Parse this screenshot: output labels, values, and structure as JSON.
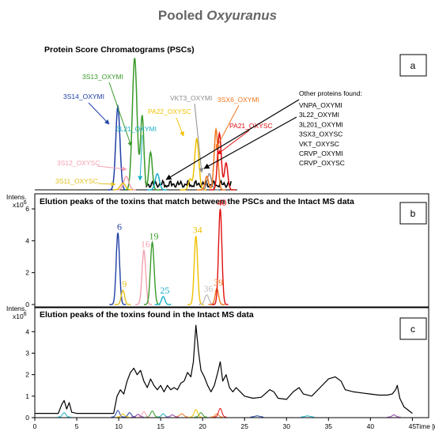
{
  "title_main": "Pooled ",
  "title_italic": "Oxyuranus",
  "colors": {
    "3S14_OXYMI": "#1f3fa6",
    "3S13_OXYMI": "#3a9a2a",
    "3L21_OXYMI": "#19b0c8",
    "PA22_OXYSC": "#f0c000",
    "VKT3_OXYMI": "#8c8c8c",
    "3SX6_OXYMI": "#f07820",
    "PA21_OXYSC": "#e01010",
    "3S12_OXYSC": "#f4a0b0",
    "3S11_OXYSC": "#e0c020",
    "other": "#000000"
  },
  "chart_data": [
    {
      "type": "line",
      "panel": "a",
      "title": "Protein Score Chromatograms (PSCs)",
      "labels": [
        {
          "text": "3S13_OXYMI",
          "color": "#3a9a2a"
        },
        {
          "text": "3S14_OXYMI",
          "color": "#1f3fa6"
        },
        {
          "text": "3L21_OXYMI",
          "color": "#19b0c8"
        },
        {
          "text": "PA22_OXYSC",
          "color": "#f0c000"
        },
        {
          "text": "VKT3_OXYMI",
          "color": "#8c8c8c"
        },
        {
          "text": "3SX6_OXYMI",
          "color": "#f07820"
        },
        {
          "text": "PA21_OXYSC",
          "color": "#e01010"
        },
        {
          "text": "3S12_OXYSC",
          "color": "#f4a0b0"
        },
        {
          "text": "3S11_OXYSC",
          "color": "#e0c020"
        }
      ],
      "other_title": "Other proteins found:",
      "other_proteins": [
        "VNPA_OXYMI",
        "3L22_OXYMI",
        "3L201_OXYMI",
        "3SX3_OXYSC",
        "VKT_OXYSC",
        "CRVP_OXYMI",
        "CRVP_OXYSC"
      ],
      "series": [
        {
          "name": "3S14_OXYMI",
          "color": "#1f3fa6",
          "peaks": [
            [
              9.9,
              0.62,
              0.25
            ]
          ]
        },
        {
          "name": "3S13_OXYMI",
          "color": "#3a9a2a",
          "peaks": [
            [
              11.9,
              0.98,
              0.28
            ],
            [
              12.8,
              0.55,
              0.2
            ],
            [
              13.8,
              0.28,
              0.2
            ]
          ]
        },
        {
          "name": "3L21_OXYMI",
          "color": "#19b0c8",
          "peaks": [
            [
              14.6,
              0.12,
              0.25
            ]
          ]
        },
        {
          "name": "PA22_OXYSC",
          "color": "#f0c000",
          "peaks": [
            [
              19.3,
              0.38,
              0.25
            ],
            [
              18.5,
              0.08,
              0.2
            ]
          ]
        },
        {
          "name": "VKT3_OXYMI",
          "color": "#8c8c8c",
          "peaks": [
            [
              20.8,
              0.12,
              0.25
            ]
          ]
        },
        {
          "name": "3SX6_OXYMI",
          "color": "#f07820",
          "peaks": [
            [
              21.6,
              0.45,
              0.22
            ],
            [
              20.5,
              0.1,
              0.2
            ]
          ]
        },
        {
          "name": "PA21_OXYSC",
          "color": "#e01010",
          "peaks": [
            [
              22.0,
              0.42,
              0.22
            ],
            [
              22.8,
              0.2,
              0.2
            ]
          ]
        },
        {
          "name": "3S12_OXYSC",
          "color": "#f4a0b0",
          "peaks": [
            [
              10.9,
              0.1,
              0.3
            ]
          ]
        },
        {
          "name": "3S11_OXYSC",
          "color": "#e0c020",
          "peaks": [
            [
              10.5,
              0.05,
              0.3
            ]
          ]
        }
      ]
    },
    {
      "type": "line",
      "panel": "b",
      "title": "Elution peaks of the toxins that match between the PSCs and the Intact MS data",
      "ylabel": "Intens.",
      "yexp": "x10",
      "yexp_power": "6",
      "ylim": [
        0,
        6.3
      ],
      "yticks": [
        0,
        2,
        4,
        6
      ],
      "series": [
        {
          "name": "6",
          "color": "#1f3fa6",
          "peaks": [
            [
              9.9,
              4.5,
              0.2
            ]
          ]
        },
        {
          "name": "9",
          "color": "#e0c020",
          "peaks": [
            [
              10.5,
              0.9,
              0.2
            ]
          ]
        },
        {
          "name": "16",
          "color": "#f4a0b0",
          "peaks": [
            [
              13.0,
              3.4,
              0.22
            ]
          ]
        },
        {
          "name": "19",
          "color": "#3a9a2a",
          "peaks": [
            [
              14.0,
              3.9,
              0.22
            ]
          ]
        },
        {
          "name": "25",
          "color": "#19b0c8",
          "peaks": [
            [
              15.3,
              0.5,
              0.2
            ]
          ]
        },
        {
          "name": "34",
          "color": "#f0c000",
          "peaks": [
            [
              19.2,
              4.3,
              0.2
            ]
          ]
        },
        {
          "name": "36",
          "color": "#c0c0c0",
          "peaks": [
            [
              20.5,
              0.6,
              0.25
            ]
          ]
        },
        {
          "name": "39",
          "color": "#f07820",
          "peaks": [
            [
              21.7,
              1.0,
              0.2
            ]
          ]
        },
        {
          "name": "40",
          "color": "#e01010",
          "peaks": [
            [
              22.1,
              6.0,
              0.2
            ]
          ]
        }
      ]
    },
    {
      "type": "line",
      "panel": "c",
      "title": "Elution peaks of the toxins found in the Intact MS data",
      "ylabel": "Intens.",
      "yexp": "x10",
      "yexp_power": "6",
      "xlabel": "Time [min]",
      "xlim": [
        0,
        46
      ],
      "xticks": [
        0,
        5,
        10,
        15,
        20,
        25,
        30,
        35,
        40,
        45
      ],
      "ylim": [
        0,
        4.6
      ],
      "yticks": [
        0,
        1,
        2,
        3,
        4
      ],
      "series": [
        {
          "name": "total",
          "color": "#000000",
          "baseline": 0.2,
          "points": [
            [
              0,
              0.2
            ],
            [
              2.8,
              0.2
            ],
            [
              3.2,
              0.6
            ],
            [
              3.5,
              0.8
            ],
            [
              3.8,
              0.4
            ],
            [
              4.1,
              0.7
            ],
            [
              4.4,
              0.25
            ],
            [
              5,
              0.2
            ],
            [
              9.4,
              0.2
            ],
            [
              9.8,
              1.0
            ],
            [
              10.2,
              1.3
            ],
            [
              10.6,
              1.1
            ],
            [
              11,
              1.7
            ],
            [
              11.4,
              2.1
            ],
            [
              11.8,
              2.3
            ],
            [
              12.2,
              2.0
            ],
            [
              12.6,
              2.2
            ],
            [
              13,
              1.7
            ],
            [
              13.4,
              1.4
            ],
            [
              13.8,
              1.8
            ],
            [
              14.2,
              1.5
            ],
            [
              14.6,
              1.3
            ],
            [
              15,
              1.5
            ],
            [
              15.4,
              1.2
            ],
            [
              15.8,
              1.5
            ],
            [
              16.2,
              1.3
            ],
            [
              16.6,
              1.4
            ],
            [
              17,
              1.3
            ],
            [
              17.4,
              1.6
            ],
            [
              17.8,
              1.7
            ],
            [
              18.2,
              2.1
            ],
            [
              18.6,
              1.9
            ],
            [
              18.9,
              2.6
            ],
            [
              19.2,
              4.3
            ],
            [
              19.5,
              3.1
            ],
            [
              19.8,
              2.2
            ],
            [
              20.2,
              1.9
            ],
            [
              20.6,
              1.5
            ],
            [
              21,
              1.2
            ],
            [
              21.4,
              1.5
            ],
            [
              21.8,
              2.1
            ],
            [
              22.1,
              2.6
            ],
            [
              22.4,
              1.7
            ],
            [
              22.8,
              2.0
            ],
            [
              23.2,
              1.4
            ],
            [
              23.6,
              1.2
            ],
            [
              24,
              1.4
            ],
            [
              24.5,
              1.2
            ],
            [
              25,
              1.0
            ],
            [
              26,
              0.9
            ],
            [
              27,
              0.95
            ],
            [
              28,
              1.3
            ],
            [
              28.5,
              1.2
            ],
            [
              29,
              0.9
            ],
            [
              30,
              0.85
            ],
            [
              30.8,
              1.2
            ],
            [
              31.5,
              1.4
            ],
            [
              32,
              1.1
            ],
            [
              33,
              1.0
            ],
            [
              34,
              1.4
            ],
            [
              35,
              1.8
            ],
            [
              35.8,
              1.9
            ],
            [
              36.5,
              1.7
            ],
            [
              37,
              1.3
            ],
            [
              38,
              1.2
            ],
            [
              39,
              1.15
            ],
            [
              40,
              1.1
            ],
            [
              41,
              1.05
            ],
            [
              42,
              1.05
            ],
            [
              42.6,
              1.1
            ],
            [
              43,
              1.3
            ],
            [
              43.2,
              1.5
            ],
            [
              43.5,
              0.9
            ],
            [
              44,
              0.5
            ],
            [
              45,
              0.2
            ]
          ]
        },
        {
          "name": "c1",
          "color": "#19b0c8",
          "peaks": [
            [
              3.5,
              0.2,
              0.2
            ],
            [
              15.3,
              0.15,
              0.2
            ],
            [
              32.5,
              0.05,
              0.3
            ]
          ]
        },
        {
          "name": "c2",
          "color": "#1f3fa6",
          "peaks": [
            [
              9.9,
              0.3,
              0.2
            ],
            [
              11.3,
              0.2,
              0.2
            ],
            [
              26.5,
              0.05,
              0.3
            ]
          ]
        },
        {
          "name": "c3",
          "color": "#3a9a2a",
          "peaks": [
            [
              14.0,
              0.28,
              0.2
            ],
            [
              19.8,
              0.2,
              0.2
            ]
          ]
        },
        {
          "name": "c4",
          "color": "#f4a0b0",
          "peaks": [
            [
              13.0,
              0.25,
              0.2
            ]
          ]
        },
        {
          "name": "c5",
          "color": "#f07820",
          "peaks": [
            [
              17.5,
              0.15,
              0.25
            ],
            [
              21.7,
              0.15,
              0.2
            ]
          ]
        },
        {
          "name": "c6",
          "color": "#e01010",
          "peaks": [
            [
              22.1,
              0.4,
              0.2
            ]
          ]
        },
        {
          "name": "c7",
          "color": "#f0c000",
          "peaks": [
            [
              10.5,
              0.15,
              0.2
            ],
            [
              19.2,
              0.35,
              0.2
            ]
          ]
        },
        {
          "name": "c8",
          "color": "#8c3aa0",
          "peaks": [
            [
              12.3,
              0.12,
              0.2
            ],
            [
              16.4,
              0.1,
              0.2
            ],
            [
              42.8,
              0.1,
              0.2
            ]
          ]
        }
      ]
    }
  ]
}
